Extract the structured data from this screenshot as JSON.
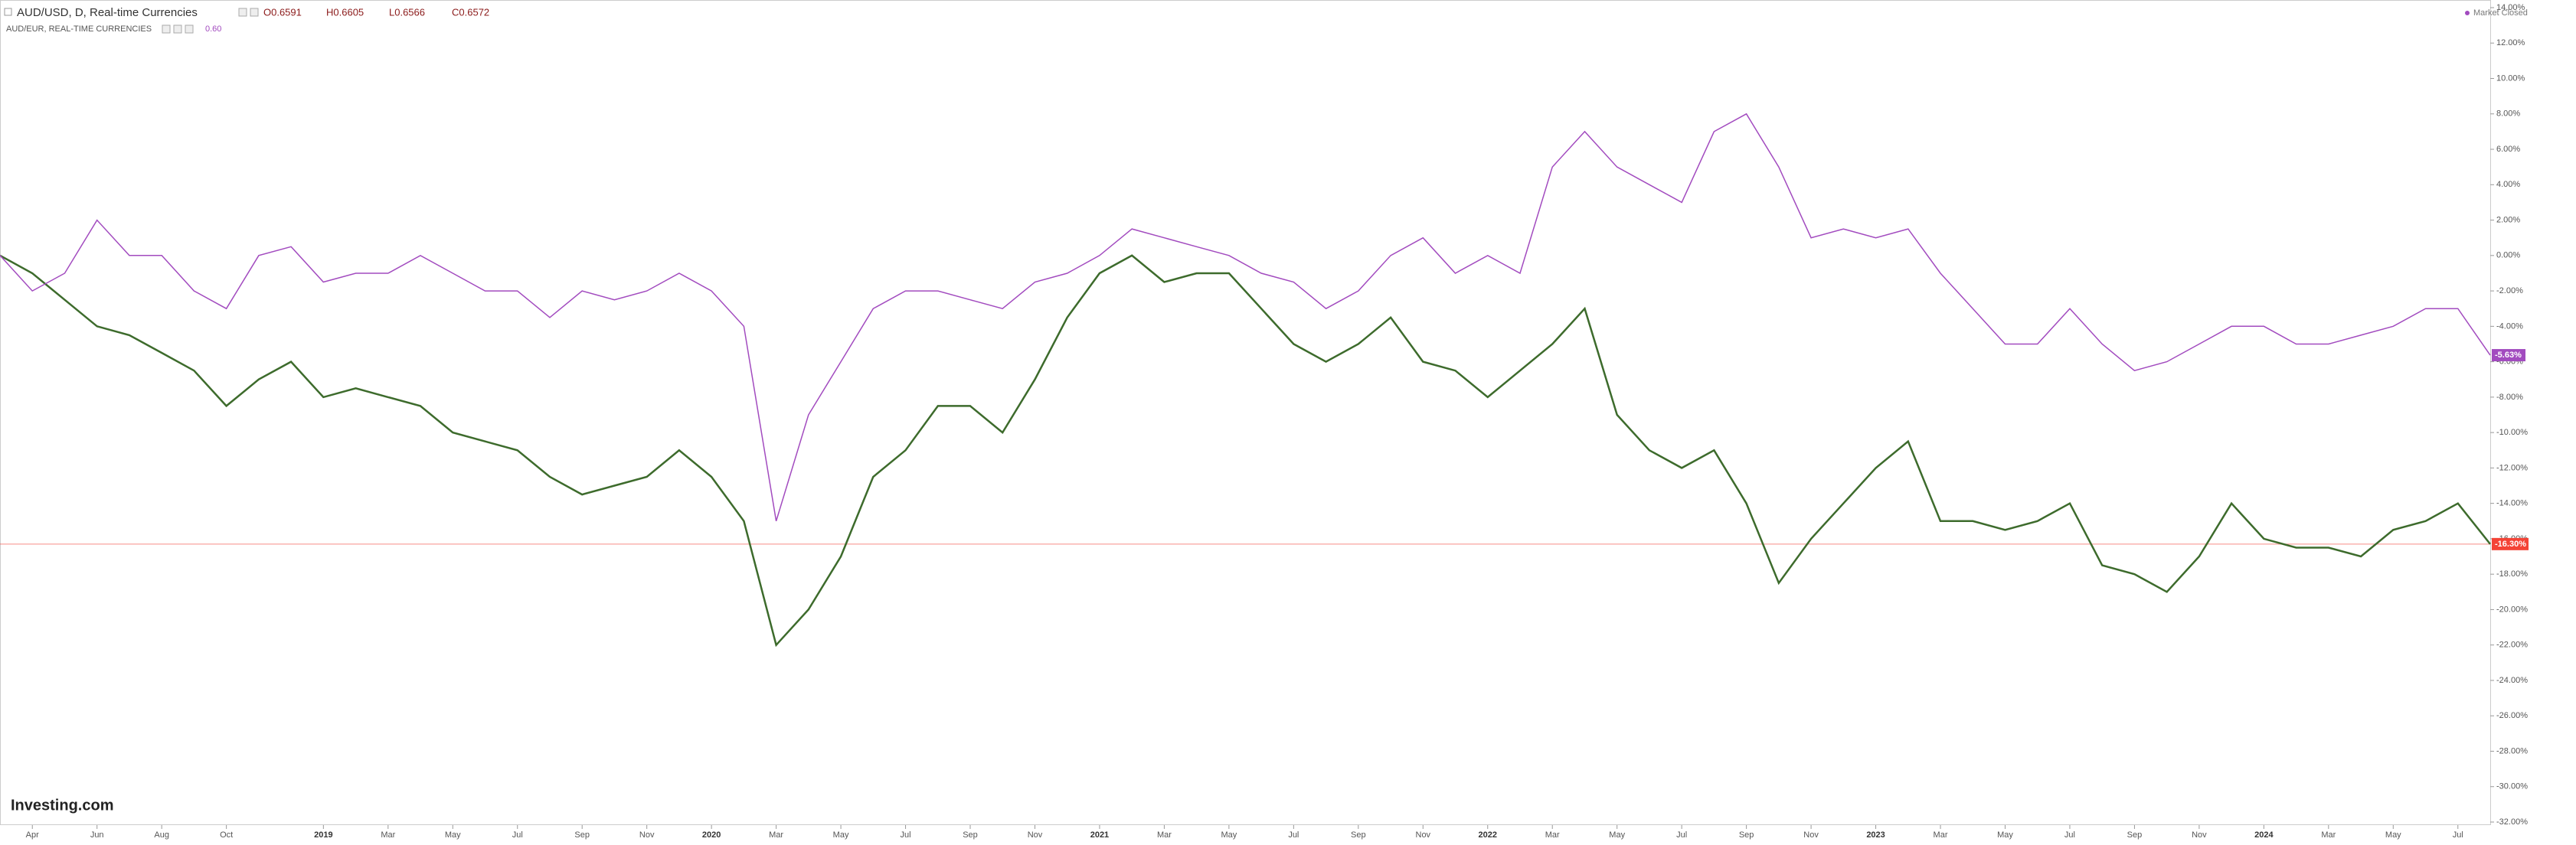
{
  "chart_data": {
    "type": "line",
    "title": "AUD/USD, D, Real-time Currencies",
    "ohlc": [
      "O0.6591",
      "H0.6605",
      "L0.6566",
      "C0.6572"
    ],
    "subtitle": "AUD/EUR, REAL-TIME CURRENCIES",
    "subtitle_value": "0.60",
    "status": "Market Closed",
    "logo": "Investing.com",
    "x": [
      "2018-03",
      "2018-04",
      "2018-05",
      "2018-06",
      "2018-07",
      "2018-08",
      "2018-09",
      "2018-10",
      "2018-11",
      "2018-12",
      "2019-01",
      "2019-02",
      "2019-03",
      "2019-04",
      "2019-05",
      "2019-06",
      "2019-07",
      "2019-08",
      "2019-09",
      "2019-10",
      "2019-11",
      "2019-12",
      "2020-01",
      "2020-02",
      "2020-03",
      "2020-04",
      "2020-05",
      "2020-06",
      "2020-07",
      "2020-08",
      "2020-09",
      "2020-10",
      "2020-11",
      "2020-12",
      "2021-01",
      "2021-02",
      "2021-03",
      "2021-04",
      "2021-05",
      "2021-06",
      "2021-07",
      "2021-08",
      "2021-09",
      "2021-10",
      "2021-11",
      "2021-12",
      "2022-01",
      "2022-02",
      "2022-03",
      "2022-04",
      "2022-05",
      "2022-06",
      "2022-07",
      "2022-08",
      "2022-09",
      "2022-10",
      "2022-11",
      "2022-12",
      "2023-01",
      "2023-02",
      "2023-03",
      "2023-04",
      "2023-05",
      "2023-06",
      "2023-07",
      "2023-08",
      "2023-09",
      "2023-10",
      "2023-11",
      "2023-12",
      "2024-01",
      "2024-02",
      "2024-03",
      "2024-04",
      "2024-05",
      "2024-06",
      "2024-07",
      "2024-08"
    ],
    "series": [
      {
        "name": "AUD/USD",
        "color": "#3d6b2c",
        "values": [
          0,
          -1,
          -2.5,
          -4,
          -4.5,
          -5.5,
          -6.5,
          -8.5,
          -7,
          -6,
          -8,
          -7.5,
          -8,
          -8.5,
          -10,
          -10.5,
          -11,
          -12.5,
          -13.5,
          -13,
          -12.5,
          -11,
          -12.5,
          -15,
          -22,
          -20,
          -17,
          -12.5,
          -11,
          -8.5,
          -8.5,
          -10,
          -7,
          -3.5,
          -1,
          0,
          -1.5,
          -1,
          -1,
          -3,
          -5,
          -6,
          -5,
          -3.5,
          -6,
          -6.5,
          -8,
          -6.5,
          -5,
          -3,
          -9,
          -11,
          -12,
          -11,
          -14,
          -18.5,
          -16,
          -14,
          -12,
          -10.5,
          -15,
          -15,
          -15.5,
          -15,
          -14,
          -17.5,
          -18,
          -19,
          -17,
          -14,
          -16,
          -16.5,
          -16.5,
          -17,
          -15.5,
          -15,
          -14,
          -16.3
        ]
      },
      {
        "name": "AUD/EUR",
        "color": "#a24bbf",
        "last_label": "-5.63%",
        "values": [
          0,
          -2,
          -1,
          2,
          0,
          0,
          -2,
          -3,
          0,
          0.5,
          -1.5,
          -1,
          -1,
          0,
          -1,
          -2,
          -2,
          -3.5,
          -2,
          -2.5,
          -2,
          -1,
          -2,
          -4,
          -15,
          -9,
          -6,
          -3,
          -2,
          -2,
          -2.5,
          -3,
          -1.5,
          -1,
          0,
          1.5,
          1,
          0.5,
          0,
          -1,
          -1.5,
          -3,
          -2,
          0,
          1,
          -1,
          0,
          -1,
          5,
          7,
          5,
          4,
          3,
          7,
          8,
          5,
          1,
          1.5,
          1,
          1.5,
          -1,
          -3,
          -5,
          -5,
          -3,
          -5,
          -6.5,
          -6,
          -5,
          -4,
          -4,
          -5,
          -5,
          -4.5,
          -4,
          -3,
          -3,
          -5.63
        ]
      }
    ],
    "price_line": {
      "value": -16.3,
      "label": "-16.30%",
      "color": "#f44336"
    },
    "xlim": [
      "2018-03",
      "2024-08"
    ],
    "xticks": [
      {
        "value": "2018-04",
        "label": "Apr"
      },
      {
        "value": "2018-06",
        "label": "Jun"
      },
      {
        "value": "2018-08",
        "label": "Aug"
      },
      {
        "value": "2018-10",
        "label": "Oct"
      },
      {
        "value": "2019-01",
        "label": "2019"
      },
      {
        "value": "2019-03",
        "label": "Mar"
      },
      {
        "value": "2019-05",
        "label": "May"
      },
      {
        "value": "2019-07",
        "label": "Jul"
      },
      {
        "value": "2019-09",
        "label": "Sep"
      },
      {
        "value": "2019-11",
        "label": "Nov"
      },
      {
        "value": "2020-01",
        "label": "2020"
      },
      {
        "value": "2020-03",
        "label": "Mar"
      },
      {
        "value": "2020-05",
        "label": "May"
      },
      {
        "value": "2020-07",
        "label": "Jul"
      },
      {
        "value": "2020-09",
        "label": "Sep"
      },
      {
        "value": "2020-11",
        "label": "Nov"
      },
      {
        "value": "2021-01",
        "label": "2021"
      },
      {
        "value": "2021-03",
        "label": "Mar"
      },
      {
        "value": "2021-05",
        "label": "May"
      },
      {
        "value": "2021-07",
        "label": "Jul"
      },
      {
        "value": "2021-09",
        "label": "Sep"
      },
      {
        "value": "2021-11",
        "label": "Nov"
      },
      {
        "value": "2022-01",
        "label": "2022"
      },
      {
        "value": "2022-03",
        "label": "Mar"
      },
      {
        "value": "2022-05",
        "label": "May"
      },
      {
        "value": "2022-07",
        "label": "Jul"
      },
      {
        "value": "2022-09",
        "label": "Sep"
      },
      {
        "value": "2022-11",
        "label": "Nov"
      },
      {
        "value": "2023-01",
        "label": "2023"
      },
      {
        "value": "2023-03",
        "label": "Mar"
      },
      {
        "value": "2023-05",
        "label": "May"
      },
      {
        "value": "2023-07",
        "label": "Jul"
      },
      {
        "value": "2023-09",
        "label": "Sep"
      },
      {
        "value": "2023-11",
        "label": "Nov"
      },
      {
        "value": "2024-01",
        "label": "2024"
      },
      {
        "value": "2024-03",
        "label": "Mar"
      },
      {
        "value": "2024-05",
        "label": "May"
      },
      {
        "value": "2024-07",
        "label": "Jul"
      }
    ],
    "ylim": [
      -32,
      14
    ],
    "yticks": [
      {
        "value": 14,
        "label": "14.00%"
      },
      {
        "value": 12,
        "label": "12.00%"
      },
      {
        "value": 10,
        "label": "10.00%"
      },
      {
        "value": 8,
        "label": "8.00%"
      },
      {
        "value": 6,
        "label": "6.00%"
      },
      {
        "value": 4,
        "label": "4.00%"
      },
      {
        "value": 2,
        "label": "2.00%"
      },
      {
        "value": 0,
        "label": "0.00%"
      },
      {
        "value": -2,
        "label": "-2.00%"
      },
      {
        "value": -4,
        "label": "-4.00%"
      },
      {
        "value": -6,
        "label": "-6.00%"
      },
      {
        "value": -8,
        "label": "-8.00%"
      },
      {
        "value": -10,
        "label": "-10.00%"
      },
      {
        "value": -12,
        "label": "-12.00%"
      },
      {
        "value": -14,
        "label": "-14.00%"
      },
      {
        "value": -16,
        "label": "-16.00%"
      },
      {
        "value": -18,
        "label": "-18.00%"
      },
      {
        "value": -20,
        "label": "-20.00%"
      },
      {
        "value": -22,
        "label": "-22.00%"
      },
      {
        "value": -24,
        "label": "-24.00%"
      },
      {
        "value": -26,
        "label": "-26.00%"
      },
      {
        "value": -28,
        "label": "-28.00%"
      },
      {
        "value": -30,
        "label": "-30.00%"
      },
      {
        "value": -32,
        "label": "-32.00%"
      }
    ],
    "grid": false
  }
}
